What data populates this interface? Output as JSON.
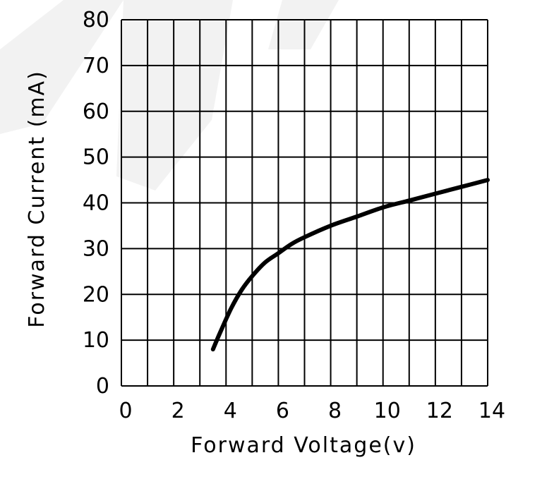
{
  "chart_data": {
    "type": "line",
    "title": "",
    "xlabel": "Forward   Voltage(v)",
    "ylabel": "Forward  Current (mA)",
    "xlim": [
      0,
      14
    ],
    "ylim": [
      0,
      80
    ],
    "x_ticks": [
      0,
      2,
      4,
      6,
      8,
      10,
      12,
      14
    ],
    "y_ticks": [
      0,
      10,
      20,
      30,
      40,
      50,
      60,
      70,
      80
    ],
    "grid": true,
    "series": [
      {
        "x": [
          3.5,
          3.8,
          4.2,
          4.6,
          5.0,
          5.5,
          6.0,
          6.5,
          7.0,
          8.0,
          9.0,
          10.0,
          11.0,
          12.0,
          13.0,
          14.0
        ],
        "y": [
          8,
          12,
          17,
          21,
          24,
          27,
          29,
          31,
          32.5,
          35,
          37,
          39,
          40.5,
          42,
          43.5,
          45
        ]
      }
    ]
  }
}
